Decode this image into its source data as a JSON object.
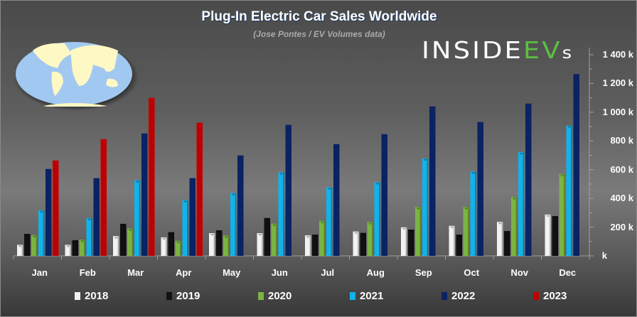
{
  "chart_data": {
    "type": "bar",
    "title": "Plug-In Electric Car Sales Worldwide",
    "subtitle": "(Jose Pontes / EV Volumes data)",
    "categories": [
      "Jan",
      "Feb",
      "Mar",
      "Apr",
      "May",
      "Jun",
      "Jul",
      "Aug",
      "Sep",
      "Oct",
      "Nov",
      "Dec"
    ],
    "series": [
      {
        "name": "2018",
        "color": "#f2f2f2",
        "values": [
          77,
          77,
          138,
          129,
          158,
          158,
          143,
          170,
          199,
          209,
          237,
          288
        ]
      },
      {
        "name": "2019",
        "color": "#111111",
        "values": [
          153,
          109,
          223,
          165,
          178,
          264,
          148,
          160,
          183,
          148,
          173,
          277
        ]
      },
      {
        "name": "2020",
        "color": "#7cb342",
        "values": [
          145,
          112,
          191,
          105,
          142,
          224,
          244,
          235,
          340,
          340,
          409,
          570
        ]
      },
      {
        "name": "2021",
        "color": "#13b2ea",
        "values": [
          318,
          264,
          527,
          389,
          438,
          582,
          478,
          513,
          679,
          587,
          722,
          907
        ]
      },
      {
        "name": "2022",
        "color": "#0b2263",
        "values": [
          605,
          541,
          852,
          541,
          699,
          912,
          778,
          847,
          1040,
          932,
          1060,
          1265
        ]
      },
      {
        "name": "2023",
        "color": "#c00000",
        "values": [
          664,
          813,
          1100,
          927,
          null,
          null,
          null,
          null,
          null,
          null,
          null,
          null
        ]
      }
    ],
    "ylim": [
      0,
      1400
    ],
    "yticks": [
      0,
      200,
      400,
      600,
      800,
      1000,
      1200,
      1400
    ],
    "ytick_labels": [
      "k",
      "200 k",
      "400 k",
      "600 k",
      "800 k",
      "1 000 k",
      "1 200 k",
      "1 400 k"
    ],
    "y_axis_side": "right",
    "grid": false,
    "legend_placement": "bottom",
    "xlabel": "",
    "ylabel": ""
  },
  "logo": {
    "part1": "INSIDE",
    "part2": "EV",
    "part3": "s"
  }
}
